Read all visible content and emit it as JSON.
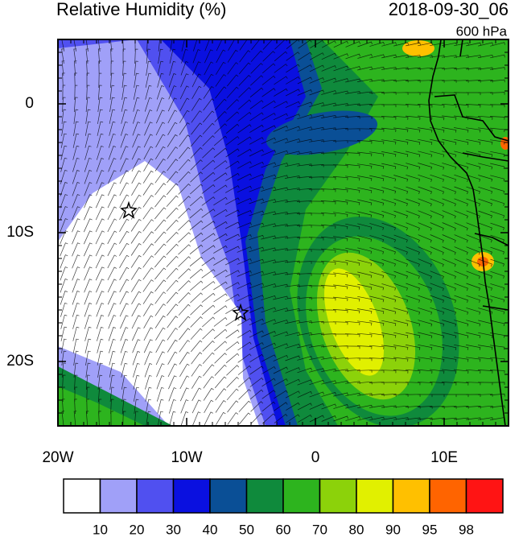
{
  "title": "Relative Humidity (%)",
  "date": "2018-09-30_06",
  "level": "600 hPa",
  "xlim": [
    -20,
    15
  ],
  "ylim": [
    -25,
    5
  ],
  "xticks": [
    {
      "value": -20,
      "label": "20W"
    },
    {
      "value": -10,
      "label": "10W"
    },
    0,
    {
      "value": 10,
      "label": "10E"
    }
  ],
  "yticks": [
    0,
    {
      "value": -10,
      "label": "10S"
    },
    {
      "value": -20,
      "label": "20S"
    }
  ],
  "colorbar": {
    "levels": [
      10,
      20,
      30,
      40,
      50,
      60,
      70,
      80,
      90,
      95,
      98
    ],
    "colors": [
      "#ffffff",
      "#a0a0f8",
      "#5050f0",
      "#0a10e0",
      "#0a4f96",
      "#0f8a3c",
      "#2db41e",
      "#8cd20a",
      "#e1f000",
      "#ffc000",
      "#ff6400",
      "#ff1414"
    ]
  }
}
